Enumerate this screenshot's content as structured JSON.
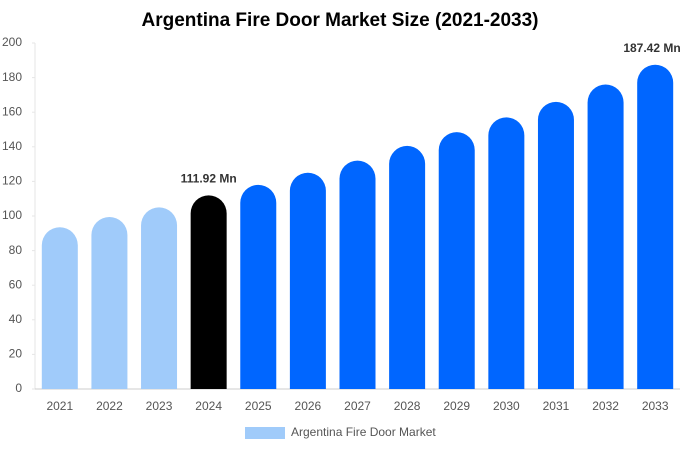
{
  "chart_data": {
    "type": "bar",
    "title": "Argentina Fire Door Market Size (2021-2033)",
    "categories": [
      "2021",
      "2022",
      "2023",
      "2024",
      "2025",
      "2026",
      "2027",
      "2028",
      "2029",
      "2030",
      "2031",
      "2032",
      "2033"
    ],
    "series": [
      {
        "name": "Argentina Fire Door Market",
        "color": "#a0cbfa",
        "colors": [
          "#a0cbfa",
          "#a0cbfa",
          "#a0cbfa",
          "#000000",
          "#0066ff",
          "#0066ff",
          "#0066ff",
          "#0066ff",
          "#0066ff",
          "#0066ff",
          "#0066ff",
          "#0066ff",
          "#0066ff"
        ],
        "values": [
          93.5,
          99.4,
          105,
          111.92,
          118,
          125,
          132,
          140.5,
          148.5,
          157,
          166,
          176,
          187.42
        ],
        "value_labels": [
          null,
          null,
          null,
          "111.92 Mn",
          null,
          null,
          null,
          null,
          null,
          null,
          null,
          null,
          "187.42 Mn"
        ]
      }
    ],
    "ylim": [
      0,
      200
    ],
    "yticks": [
      0,
      20,
      40,
      60,
      80,
      100,
      120,
      140,
      160,
      180,
      200
    ],
    "grid": false,
    "legend": "bottom"
  }
}
